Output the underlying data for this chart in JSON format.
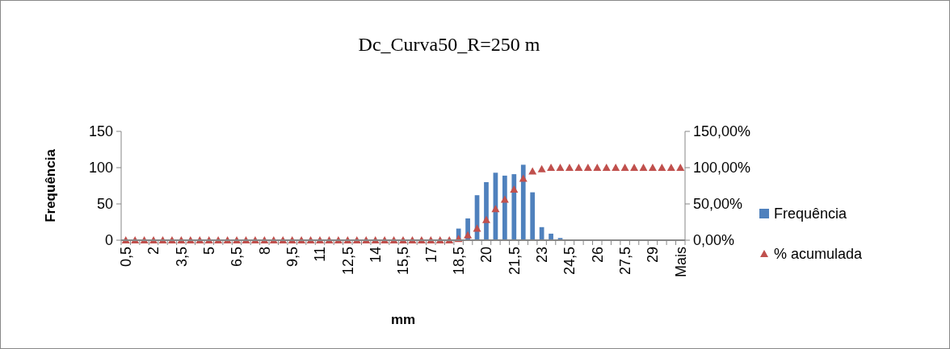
{
  "chart_data": {
    "type": "bar",
    "title": "Dc_Curva50_R=250 m",
    "xlabel": "mm",
    "ylabel": "Frequência",
    "categories": [
      "0,5",
      null,
      null,
      "2",
      null,
      null,
      "3,5",
      null,
      null,
      "5",
      null,
      null,
      "6,5",
      null,
      null,
      "8",
      null,
      null,
      "9,5",
      null,
      null,
      "11",
      null,
      null,
      "12,5",
      null,
      null,
      "14",
      null,
      null,
      "15,5",
      null,
      null,
      "17",
      null,
      null,
      "18,5",
      null,
      null,
      "20",
      null,
      null,
      "21,5",
      null,
      null,
      "23",
      null,
      null,
      "24,5",
      null,
      null,
      "26",
      null,
      null,
      "27,5",
      null,
      null,
      "29",
      null,
      null,
      "Mais"
    ],
    "series": [
      {
        "name": "Frequência",
        "color": "#4f81bd",
        "values": [
          0,
          0,
          0,
          0,
          0,
          0,
          0,
          0,
          0,
          0,
          0,
          0,
          0,
          0,
          0,
          0,
          0,
          0,
          0,
          0,
          0,
          0,
          0,
          0,
          0,
          0,
          0,
          0,
          0,
          0,
          0,
          0,
          0,
          0,
          0,
          0,
          16,
          30,
          62,
          80,
          93,
          89,
          91,
          104,
          66,
          18,
          9,
          3,
          0,
          0,
          0,
          0,
          0,
          0,
          0,
          0,
          0,
          0,
          0,
          0,
          0
        ]
      },
      {
        "name": "% acumulada",
        "type": "scatter",
        "axis": "y2",
        "marker": "triangle",
        "color": "#c0504d",
        "values": [
          0,
          0,
          0,
          0,
          0,
          0,
          0,
          0,
          0,
          0,
          0,
          0,
          0,
          0,
          0,
          0,
          0,
          0,
          0,
          0,
          0,
          0,
          0,
          0,
          0,
          0,
          0,
          0,
          0,
          0,
          0,
          0,
          0,
          0,
          0,
          0,
          0.02,
          0.07,
          0.16,
          0.28,
          0.43,
          0.56,
          0.7,
          0.85,
          0.95,
          0.98,
          1,
          1,
          1,
          1,
          1,
          1,
          1,
          1,
          1,
          1,
          1,
          1,
          1,
          1,
          1
        ]
      }
    ],
    "ylim": [
      0,
      150
    ],
    "yticks": [
      0,
      50,
      100,
      150
    ],
    "y2lim": [
      0,
      1.5
    ],
    "y2ticks": [
      {
        "value": 0,
        "label": "0,00%"
      },
      {
        "value": 0.5,
        "label": "50,00%"
      },
      {
        "value": 1,
        "label": "100,00%"
      },
      {
        "value": 1.5,
        "label": "150,00%"
      }
    ],
    "legend": "right",
    "grid": false
  }
}
